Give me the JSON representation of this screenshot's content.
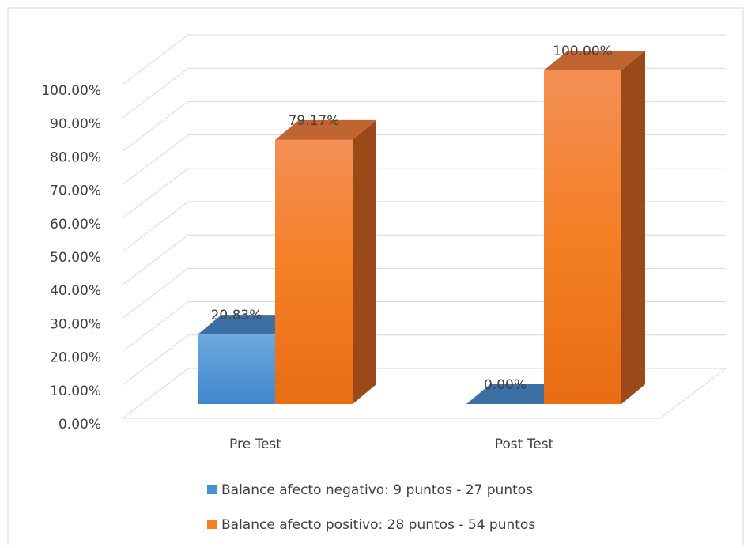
{
  "chart_data": {
    "type": "bar3d",
    "categories": [
      "Pre Test",
      "Post Test"
    ],
    "series": [
      {
        "name": "Balance afecto negativo: 9 puntos - 27 puntos",
        "color": "#4a8fd4",
        "values": [
          20.83,
          0
        ],
        "value_labels": [
          "20.83%",
          "0.00%"
        ]
      },
      {
        "name": "Balance afecto positivo: 28 puntos - 54 puntos",
        "color": "#f47f24",
        "values": [
          79.17,
          100
        ],
        "value_labels": [
          "79.17%",
          "100.00%"
        ]
      }
    ],
    "ylim": [
      0,
      100
    ],
    "yticks": [
      {
        "value": 0,
        "label": "0.00%"
      },
      {
        "value": 10,
        "label": "10.00%"
      },
      {
        "value": 20,
        "label": "20.00%"
      },
      {
        "value": 30,
        "label": "30.00%"
      },
      {
        "value": 40,
        "label": "40.00%"
      },
      {
        "value": 50,
        "label": "50.00%"
      },
      {
        "value": 60,
        "label": "60.00%"
      },
      {
        "value": 70,
        "label": "70.00%"
      },
      {
        "value": 80,
        "label": "80.00%"
      },
      {
        "value": 90,
        "label": "90.00%"
      },
      {
        "value": 100,
        "label": "100.00%"
      }
    ],
    "grid": true,
    "legend": "bottom"
  }
}
